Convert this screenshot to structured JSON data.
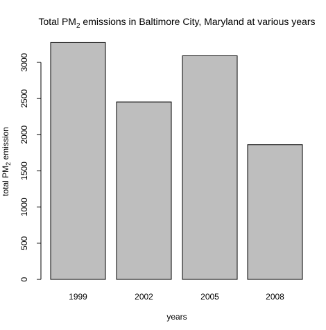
{
  "chart_data": {
    "type": "bar",
    "title_main": "Total PM",
    "title_sub": "2",
    "title_rest": " emissions in Baltimore City, Maryland at various years",
    "xlabel": "years",
    "ylabel_main": "total PM",
    "ylabel_sub": "2",
    "ylabel_rest": " emission",
    "categories": [
      "1999",
      "2002",
      "2005",
      "2008"
    ],
    "values": [
      3274,
      2453,
      3091,
      1862
    ],
    "ylim": [
      0,
      3300
    ],
    "yticks": [
      0,
      500,
      1000,
      1500,
      2000,
      2500,
      3000
    ],
    "ytick_labels": [
      "0",
      "500",
      "1000",
      "1500",
      "2000",
      "2500",
      "3000"
    ],
    "grid": false,
    "bar_color": "#bebebe",
    "bar_edge_color": "#000000"
  }
}
